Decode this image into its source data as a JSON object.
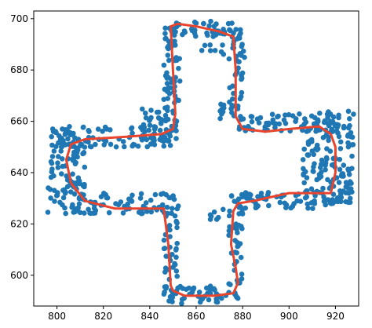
{
  "chart_data": {
    "type": "scatter",
    "title": "",
    "xlabel": "",
    "ylabel": "",
    "xlim": [
      790,
      930
    ],
    "ylim": [
      588,
      703
    ],
    "xticks": [
      800,
      820,
      840,
      860,
      880,
      900,
      920
    ],
    "yticks": [
      600,
      620,
      640,
      660,
      680,
      700
    ],
    "grid": false,
    "series": [
      {
        "kind": "scatter",
        "color": "#1f77b4",
        "regions": [
          {
            "x": [
              846,
              878
            ],
            "y": [
              693,
              699
            ]
          },
          {
            "x": [
              846,
              853
            ],
            "y": [
              655,
              697
            ]
          },
          {
            "x": [
              846,
              849
            ],
            "y": [
              670,
              675
            ]
          },
          {
            "x": [
              862,
              872
            ],
            "y": [
              686,
              690
            ]
          },
          {
            "x": [
              874,
              881
            ],
            "y": [
              662,
              696
            ]
          },
          {
            "x": [
              867,
              872
            ],
            "y": [
              660,
              668
            ]
          },
          {
            "x": [
              878,
              920
            ],
            "y": [
              656,
              663
            ]
          },
          {
            "x": [
              906,
              928
            ],
            "y": [
              628,
              664
            ]
          },
          {
            "x": [
              878,
              922
            ],
            "y": [
              626,
              633
            ]
          },
          {
            "x": [
              874,
              880
            ],
            "y": [
              595,
              632
            ]
          },
          {
            "x": [
              846,
              880
            ],
            "y": [
              589,
              596
            ]
          },
          {
            "x": [
              846,
              852
            ],
            "y": [
              591,
              628
            ]
          },
          {
            "x": [
              808,
              853
            ],
            "y": [
              624,
              632
            ]
          },
          {
            "x": [
              796,
              812
            ],
            "y": [
              624,
              656
            ]
          },
          {
            "x": [
              796,
              852
            ],
            "y": [
              650,
              658
            ]
          },
          {
            "x": [
              836,
              852
            ],
            "y": [
              652,
              665
            ]
          },
          {
            "x": [
              866,
              872
            ],
            "y": [
              620,
              626
            ]
          }
        ]
      },
      {
        "kind": "line",
        "color": "#e8442d",
        "x": [
          849,
          852,
          860,
          870,
          876,
          877,
          877,
          880,
          890,
          900,
          913,
          918,
          920,
          920,
          918,
          900,
          885,
          878,
          876,
          875,
          877,
          878,
          876,
          868,
          855,
          850,
          849,
          848,
          846,
          838,
          825,
          812,
          806,
          804,
          806,
          812,
          830,
          845,
          850,
          851,
          850,
          849
        ],
        "y": [
          697,
          698,
          697,
          695,
          693,
          680,
          662,
          657,
          656,
          657,
          658,
          655,
          650,
          640,
          632,
          632,
          629,
          628,
          625,
          612,
          603,
          597,
          593,
          592,
          592,
          594,
          596,
          612,
          626,
          626,
          626,
          629,
          636,
          645,
          651,
          653,
          654,
          655,
          657,
          663,
          680,
          697
        ]
      }
    ]
  }
}
